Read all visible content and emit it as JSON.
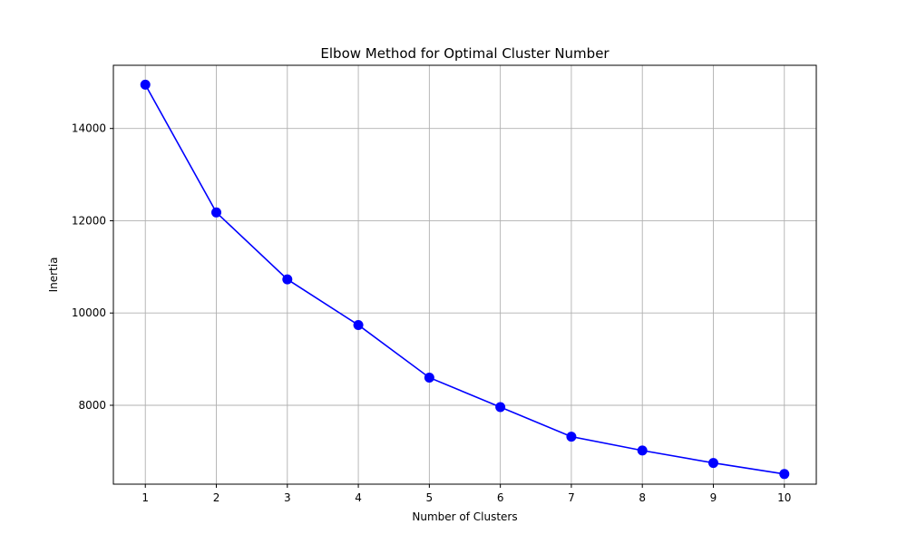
{
  "chart_data": {
    "type": "line",
    "title": "Elbow Method for Optimal Cluster Number",
    "xlabel": "Number of Clusters",
    "ylabel": "Inertia",
    "x": [
      1,
      2,
      3,
      4,
      5,
      6,
      7,
      8,
      9,
      10
    ],
    "series": [
      {
        "values": [
          14950,
          12180,
          10730,
          9740,
          8600,
          7960,
          7320,
          7020,
          6750,
          6510
        ],
        "color": "#0000ff",
        "marker": "circle"
      }
    ],
    "x_ticks": [
      "1",
      "2",
      "3",
      "4",
      "5",
      "6",
      "7",
      "8",
      "9",
      "10"
    ],
    "y_ticks": [
      "8000",
      "10000",
      "12000",
      "14000"
    ],
    "xlim": [
      0.55,
      10.45
    ],
    "ylim": [
      6290,
      15370
    ],
    "grid": true
  }
}
